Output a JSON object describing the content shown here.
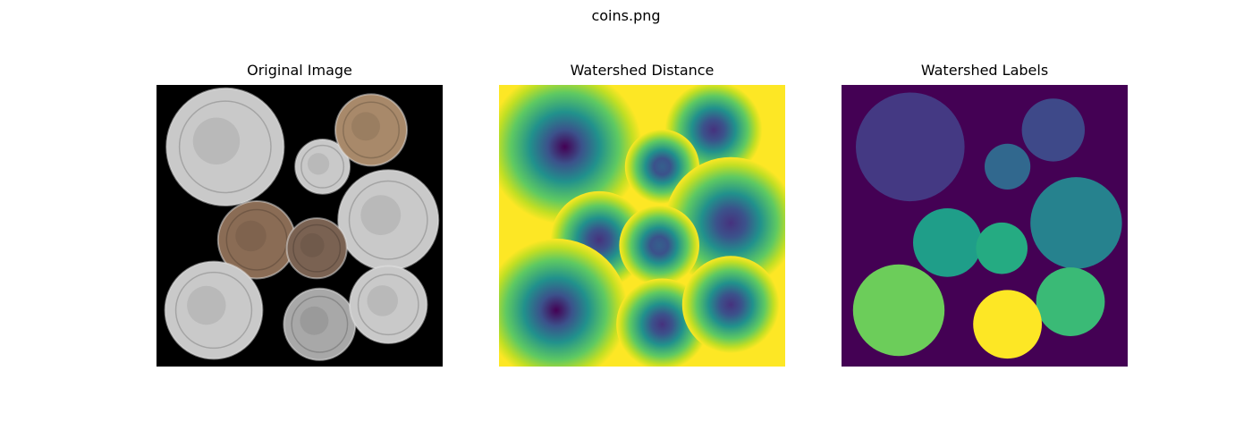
{
  "figure": {
    "title": "coins.png"
  },
  "chart_data": [
    {
      "type": "image",
      "title": "Original Image",
      "content": "grayscale photograph of coins on a black background",
      "background_color": "#000000",
      "coins": [
        {
          "cx": 0.24,
          "cy": 0.22,
          "r": 0.205,
          "tone": "silver"
        },
        {
          "cx": 0.58,
          "cy": 0.29,
          "r": 0.095,
          "tone": "silver"
        },
        {
          "cx": 0.75,
          "cy": 0.16,
          "r": 0.125,
          "tone": "copper-light"
        },
        {
          "cx": 0.81,
          "cy": 0.48,
          "r": 0.175,
          "tone": "silver"
        },
        {
          "cx": 0.35,
          "cy": 0.55,
          "r": 0.135,
          "tone": "copper"
        },
        {
          "cx": 0.56,
          "cy": 0.58,
          "r": 0.105,
          "tone": "copper-dark"
        },
        {
          "cx": 0.2,
          "cy": 0.8,
          "r": 0.17,
          "tone": "silver"
        },
        {
          "cx": 0.57,
          "cy": 0.85,
          "r": 0.125,
          "tone": "silver-dark"
        },
        {
          "cx": 0.81,
          "cy": 0.78,
          "r": 0.135,
          "tone": "silver"
        }
      ],
      "tone_colors": {
        "silver": "#c9c9c9",
        "silver-dark": "#a8a8a8",
        "copper-light": "#a8896a",
        "copper": "#8a6c55",
        "copper-dark": "#7a6252"
      }
    },
    {
      "type": "heatmap",
      "title": "Watershed Distance",
      "colormap": "viridis",
      "background_color": "#fde725",
      "basins": [
        {
          "cx": 0.23,
          "cy": 0.22,
          "r": 0.27,
          "depth": 1.0
        },
        {
          "cx": 0.75,
          "cy": 0.16,
          "r": 0.17,
          "depth": 0.72
        },
        {
          "cx": 0.57,
          "cy": 0.29,
          "r": 0.13,
          "depth": 0.62
        },
        {
          "cx": 0.81,
          "cy": 0.49,
          "r": 0.23,
          "depth": 0.95
        },
        {
          "cx": 0.35,
          "cy": 0.55,
          "r": 0.17,
          "depth": 0.75
        },
        {
          "cx": 0.56,
          "cy": 0.57,
          "r": 0.14,
          "depth": 0.68
        },
        {
          "cx": 0.2,
          "cy": 0.8,
          "r": 0.25,
          "depth": 1.0
        },
        {
          "cx": 0.57,
          "cy": 0.85,
          "r": 0.16,
          "depth": 0.72
        },
        {
          "cx": 0.81,
          "cy": 0.78,
          "r": 0.17,
          "depth": 0.75
        }
      ]
    },
    {
      "type": "segmentation",
      "title": "Watershed Labels",
      "colormap": "viridis",
      "background_color": "#440154",
      "regions": [
        {
          "label": 1,
          "cx": 0.24,
          "cy": 0.22,
          "r": 0.19,
          "color": "#443983"
        },
        {
          "label": 2,
          "cx": 0.74,
          "cy": 0.16,
          "r": 0.11,
          "color": "#3e4989"
        },
        {
          "label": 3,
          "cx": 0.58,
          "cy": 0.29,
          "r": 0.08,
          "color": "#31688e"
        },
        {
          "label": 4,
          "cx": 0.82,
          "cy": 0.49,
          "r": 0.16,
          "color": "#26828e"
        },
        {
          "label": 5,
          "cx": 0.37,
          "cy": 0.56,
          "r": 0.12,
          "color": "#1f9e89"
        },
        {
          "label": 6,
          "cx": 0.56,
          "cy": 0.58,
          "r": 0.09,
          "color": "#25ab82"
        },
        {
          "label": 7,
          "cx": 0.8,
          "cy": 0.77,
          "r": 0.12,
          "color": "#3aba76"
        },
        {
          "label": 8,
          "cx": 0.2,
          "cy": 0.8,
          "r": 0.16,
          "color": "#6ccd5a"
        },
        {
          "label": 9,
          "cx": 0.58,
          "cy": 0.85,
          "r": 0.12,
          "color": "#fde725"
        }
      ]
    }
  ]
}
